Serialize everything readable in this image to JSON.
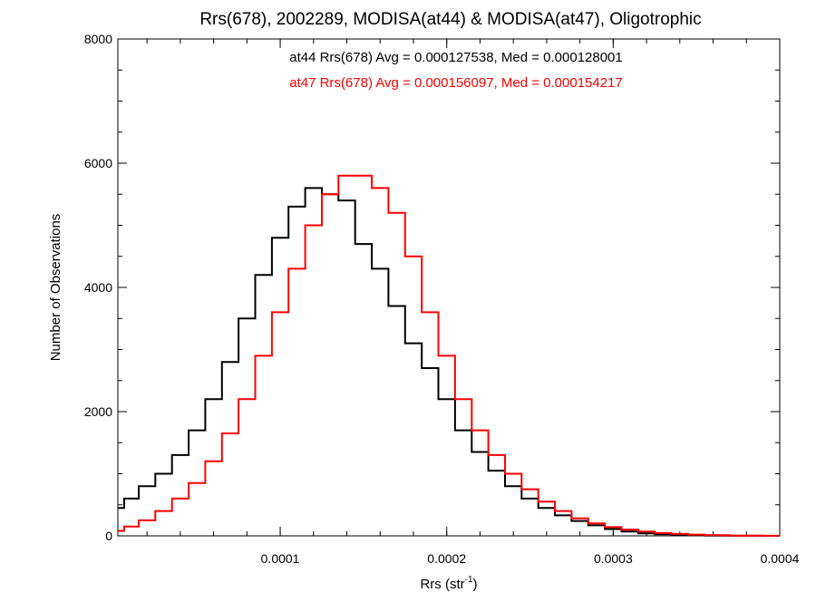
{
  "chart_data": {
    "type": "line",
    "title": "Rrs(678), 2002289, MODISA(at44) & MODISA(at47), Oligotrophic",
    "xlabel_main": "Rrs (str",
    "xlabel_sup": "-1",
    "xlabel_close": ")",
    "ylabel": "Number of Observations",
    "xlim": [
      2.5e-06,
      0.0004
    ],
    "ylim": [
      0,
      8000
    ],
    "x_ticks": [
      {
        "value": 0.0001,
        "label": "0.0001"
      },
      {
        "value": 0.0002,
        "label": "0.0002"
      },
      {
        "value": 0.0003,
        "label": "0.0003"
      },
      {
        "value": 0.0004,
        "label": "0.0004"
      }
    ],
    "y_ticks": [
      {
        "value": 0,
        "label": "0"
      },
      {
        "value": 2000,
        "label": "2000"
      },
      {
        "value": 4000,
        "label": "4000"
      },
      {
        "value": 6000,
        "label": "6000"
      },
      {
        "value": 8000,
        "label": "8000"
      }
    ],
    "annotations": [
      {
        "text": "at44 Rrs(678) Avg = 0.000127538, Med = 0.000128001",
        "color": "#000000"
      },
      {
        "text": "at47 Rrs(678) Avg = 0.000156097, Med = 0.000154217",
        "color": "#ff0000"
      }
    ],
    "series": [
      {
        "color": "#000000",
        "step": true,
        "x": [
          2.5e-06,
          1e-05,
          2e-05,
          3e-05,
          4e-05,
          5e-05,
          6e-05,
          7e-05,
          8e-05,
          9e-05,
          0.0001,
          0.00011,
          0.00012,
          0.00013,
          0.00014,
          0.00015,
          0.00016,
          0.00017,
          0.00018,
          0.00019,
          0.0002,
          0.00021,
          0.00022,
          0.00023,
          0.00024,
          0.00025,
          0.00026,
          0.00027,
          0.00028,
          0.00029,
          0.0003,
          0.00031,
          0.00032,
          0.00033,
          0.00034,
          0.00035,
          0.00036,
          0.00038,
          0.0004
        ],
        "y": [
          450,
          600,
          800,
          1000,
          1300,
          1700,
          2200,
          2800,
          3500,
          4200,
          4800,
          5300,
          5600,
          5500,
          5400,
          4700,
          4300,
          3700,
          3100,
          2700,
          2200,
          1700,
          1350,
          1050,
          800,
          600,
          450,
          330,
          240,
          170,
          110,
          70,
          40,
          25,
          15,
          8,
          5,
          2,
          0
        ]
      },
      {
        "color": "#ff0000",
        "step": true,
        "x": [
          2.5e-06,
          1e-05,
          2e-05,
          3e-05,
          4e-05,
          5e-05,
          6e-05,
          7e-05,
          8e-05,
          9e-05,
          0.0001,
          0.00011,
          0.00012,
          0.00013,
          0.00014,
          0.00015,
          0.00016,
          0.00017,
          0.00018,
          0.00019,
          0.0002,
          0.00021,
          0.00022,
          0.00023,
          0.00024,
          0.00025,
          0.00026,
          0.00027,
          0.00028,
          0.00029,
          0.0003,
          0.00031,
          0.00032,
          0.00033,
          0.00034,
          0.00035,
          0.00036,
          0.00038,
          0.0004
        ],
        "y": [
          80,
          150,
          250,
          400,
          600,
          850,
          1200,
          1650,
          2200,
          2900,
          3600,
          4300,
          5000,
          5500,
          5800,
          5800,
          5600,
          5200,
          4500,
          3600,
          2900,
          2200,
          1700,
          1300,
          1000,
          750,
          550,
          400,
          280,
          200,
          140,
          100,
          70,
          45,
          30,
          20,
          12,
          5,
          2
        ]
      }
    ]
  }
}
